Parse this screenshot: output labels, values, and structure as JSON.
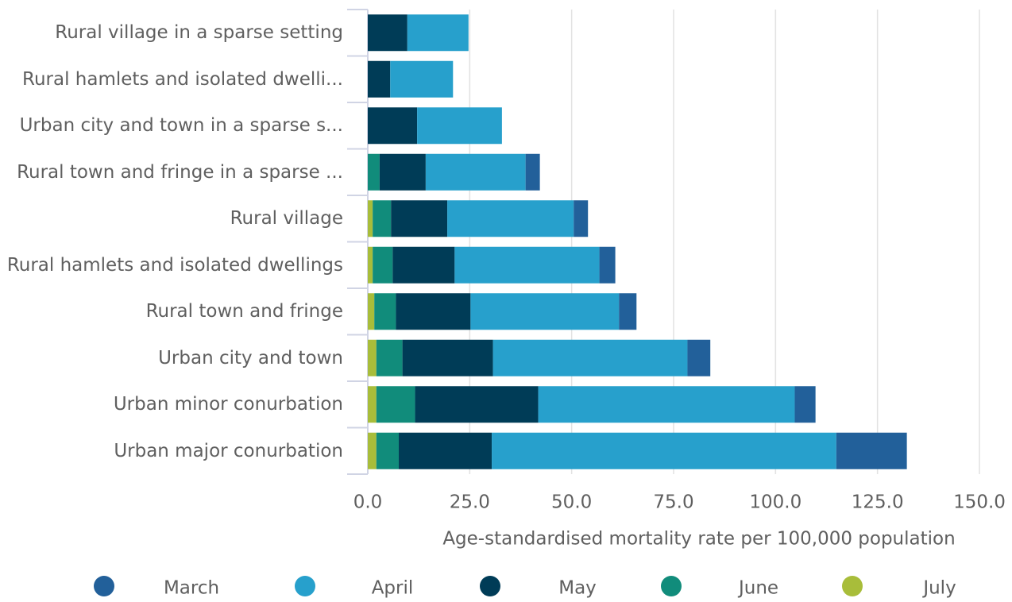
{
  "chart_data": {
    "type": "stacked-bar-horizontal",
    "x_label": "Age-standardised mortality rate per 100,000 population",
    "categories": [
      "Rural village in a sparse setting",
      "Rural hamlets and isolated dwelli...",
      "Urban city and town in a sparse s...",
      "Rural town and fringe in a sparse ...",
      "Rural village",
      "Rural hamlets and isolated dwellings",
      "Rural town and fringe",
      "Urban city and town",
      "Urban minor conurbation",
      "Urban major conurbation"
    ],
    "series": [
      {
        "name": "March",
        "color": "#22609a",
        "values": [
          0,
          0,
          0,
          3.5,
          3.5,
          3.9,
          4.3,
          5.6,
          5.1,
          17.3
        ]
      },
      {
        "name": "April",
        "color": "#27a0cc",
        "values": [
          15.0,
          15.4,
          20.8,
          24.5,
          31.0,
          35.5,
          36.4,
          47.7,
          62.9,
          84.5
        ]
      },
      {
        "name": "May",
        "color": "#003c57",
        "values": [
          9.7,
          5.5,
          12.1,
          11.3,
          13.8,
          15.2,
          18.3,
          22.2,
          30.2,
          22.8
        ]
      },
      {
        "name": "June",
        "color": "#118c7b",
        "values": [
          0,
          0,
          0,
          2.9,
          4.5,
          4.9,
          5.3,
          6.4,
          9.5,
          5.5
        ]
      },
      {
        "name": "July",
        "color": "#a8bd3a",
        "values": [
          0,
          0,
          0,
          0,
          1.2,
          1.2,
          1.6,
          2.1,
          2.1,
          2.1
        ]
      }
    ],
    "xlim": [
      0,
      150
    ],
    "xticks": [
      {
        "value": 0,
        "label": "0.0"
      },
      {
        "value": 25,
        "label": "25.0"
      },
      {
        "value": 50,
        "label": "50.0"
      },
      {
        "value": 75,
        "label": "75.0"
      },
      {
        "value": 100,
        "label": "100.0"
      },
      {
        "value": 125,
        "label": "125.0"
      },
      {
        "value": 150,
        "label": "150.0"
      }
    ],
    "grid": true
  }
}
